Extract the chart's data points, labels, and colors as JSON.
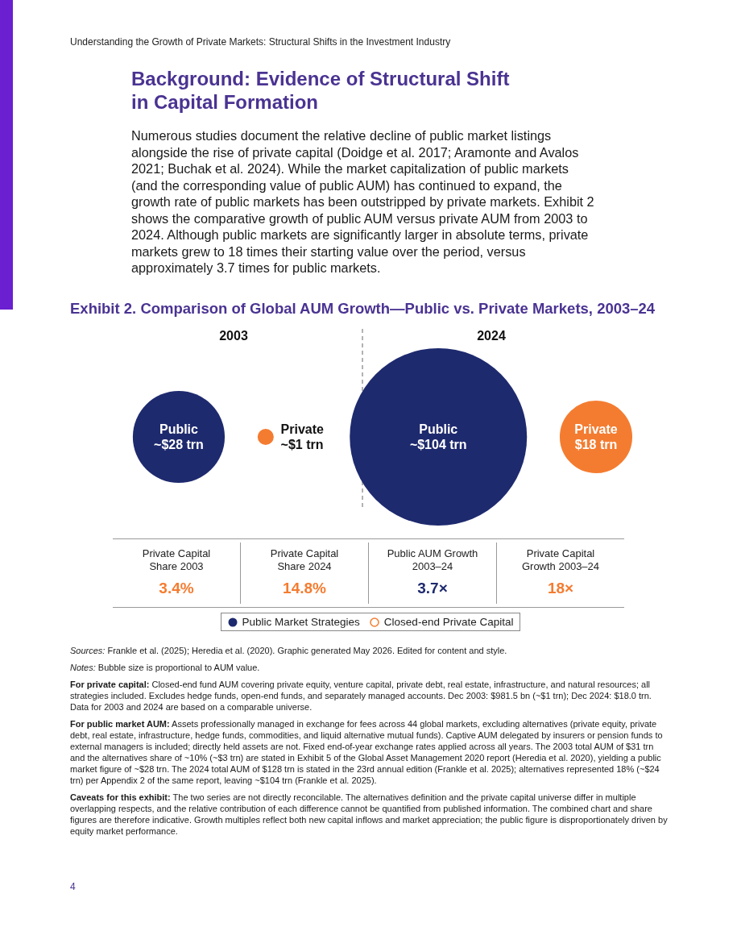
{
  "chart_data": [
    {
      "type": "other",
      "title": "Exhibit 2. Comparison of Global AUM Growth—Public vs. Private Markets, 2003–24",
      "categories": [
        "2003",
        "2024"
      ],
      "legend": "bottom",
      "series": [
        {
          "name": "Public Market Strategies",
          "color": "#1e2a6e",
          "values": [
            28,
            104
          ],
          "value_labels": [
            "Public ~$28 trn",
            "Public ~$104 trn"
          ]
        },
        {
          "name": "Closed-end Private Capital",
          "color": "#f47c30",
          "values": [
            1,
            18
          ],
          "value_labels": [
            "Private ~$1 trn",
            "Private $18 trn"
          ]
        }
      ],
      "annotations": [
        "Understanding the Growth of Private Markets: Structural Shifts in the Investment Industry",
        "Background: Evidence of Structural Shift in Capital Formation",
        "Numerous studies document the relative decline of public market listings alongside the rise of private capital (Doidge et al. 2017; Aramonte and Avalos 2021; Buchak et al. 2024). While the market capitalization of public markets (and the corresponding value of public AUM) has continued to expand, the growth rate of public markets has been outstripped by private markets. Exhibit 2 shows the comparative growth of public AUM versus private AUM from 2003 to 2024. Although public markets are significantly larger in absolute terms, private markets grew to 18 times their starting value over the period, versus approximately 3.7 times for public markets.",
        "Sources: Frankle et al. (2025); Heredia et al. (2020). Graphic generated May 2026. Edited for content and style.",
        "Notes: Bubble size is proportional to AUM value.",
        "For private capital: Closed-end fund AUM covering private equity, venture capital, private debt, real estate, infrastructure, and natural resources; all strategies included. Excludes hedge funds, open-end funds, and separately managed accounts. Dec 2003: $981.5 bn (~$1 trn); Dec 2024: $18.0 trn. Data for 2003 and 2024 are based on a comparable universe.",
        "For public market AUM: Assets professionally managed in exchange for fees across 44 global markets, excluding alternatives (private equity, private debt, real estate, infrastructure, hedge funds, commodities, and liquid alternative mutual funds). Captive AUM delegated by insurers or pension funds to external managers is included; directly held assets are not. Fixed end-of-year exchange rates applied across all years. The 2003 total AUM of $31 trn and the alternatives share of ~10% (~$3 trn) are stated in Exhibit 5 of the Global Asset Management 2020 report (Heredia et al. 2020), yielding a public market figure of ~$28 trn. The 2024 total AUM of $128 trn is stated in the 23rd annual edition (Frankle et al. 2025); alternatives represented 18% (~$24 trn) per Appendix 2 of the same report, leaving ~$104 trn (Frankle et al. 2025).",
        "Caveats for this exhibit: The two series are not directly reconcilable. The alternatives definition and the private capital universe differ in multiple overlapping respects, and the relative contribution of each difference cannot be quantified from published information. The combined chart and share figures are therefore indicative. Growth multiples reflect both new capital inflows and market appreciation; the public figure is disproportionately driven by equity market performance.",
        "4"
      ]
    },
    {
      "type": "other",
      "annotations": [
        "Private Capital Share 2003",
        "3.4%",
        "Private Capital Share 2024",
        "14.8%",
        "Public AUM Growth 2003–24",
        "3.7×",
        "Private Capital Growth 2003–24",
        "18×"
      ]
    }
  ]
}
